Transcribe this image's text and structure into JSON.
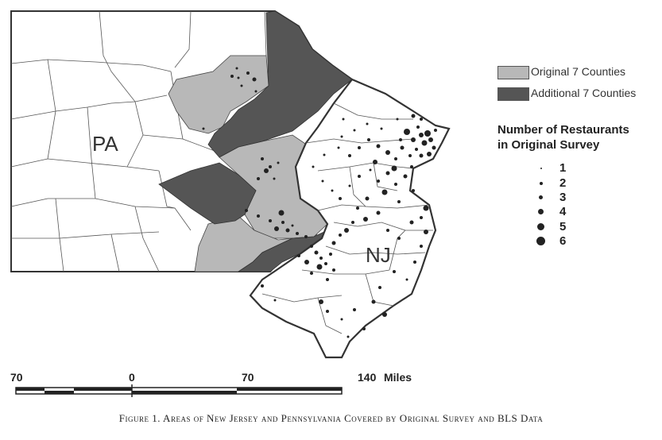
{
  "legend": {
    "categories": [
      {
        "label": "Original 7 Counties",
        "color": "#b8b8b8"
      },
      {
        "label": "Additional 7 Counties",
        "color": "#555555"
      }
    ],
    "size_title_line1": "Number of Restaurants",
    "size_title_line2": "in Original Survey",
    "size_values": [
      "1",
      "2",
      "3",
      "4",
      "5",
      "6"
    ]
  },
  "states": {
    "pa": "PA",
    "nj": "NJ"
  },
  "scale": {
    "labels": [
      "70",
      "0",
      "70",
      "140"
    ],
    "unit": "Miles"
  },
  "caption": "Figure 1. Areas of New Jersey and Pennsylvania Covered by Original Survey and BLS Data"
}
